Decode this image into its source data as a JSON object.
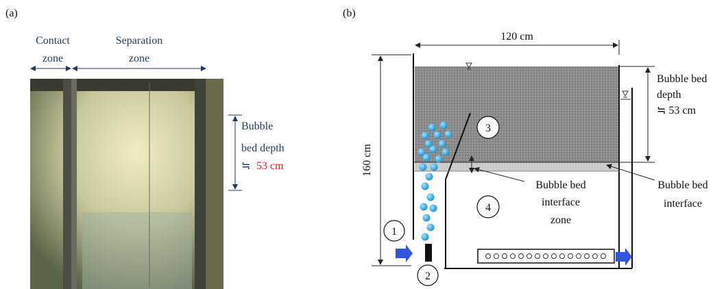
{
  "panel_a": {
    "label": "(a)",
    "contact_zone": [
      "Contact",
      "zone"
    ],
    "separation_zone": [
      "Separation",
      "zone"
    ],
    "depth_label": [
      "Bubble",
      "bed depth"
    ],
    "approx": "≒",
    "depth_value": "53 cm"
  },
  "panel_b": {
    "label": "(b)",
    "width": "120 cm",
    "height": "160 cm",
    "depth_label": [
      "Bubble bed",
      "depth",
      "≒ 53 cm"
    ],
    "markers": [
      "1",
      "2",
      "3",
      "4"
    ],
    "interface_zone": [
      "Bubble bed",
      "interface",
      "zone"
    ],
    "interface": [
      "Bubble bed",
      "interface"
    ]
  }
}
